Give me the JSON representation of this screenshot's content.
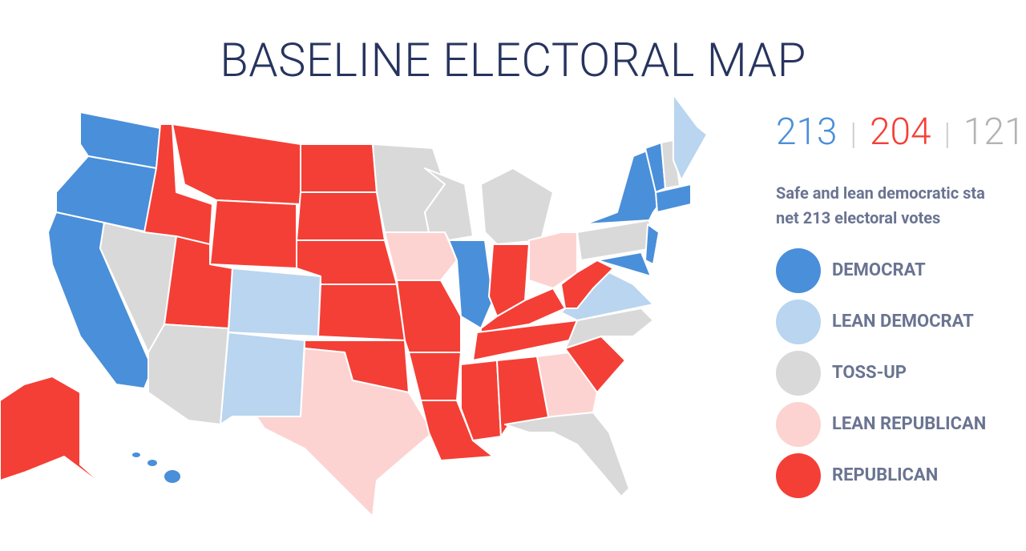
{
  "title": "BASELINE ELECTORAL MAP",
  "tally": [
    {
      "value": 213,
      "color": "#4a8fd9"
    },
    {
      "value": 204,
      "color": "#f43f36"
    },
    {
      "value": 121,
      "color": "#b3b3b3"
    }
  ],
  "description": [
    "Safe and lean democratic sta",
    "net 213 electoral votes"
  ],
  "legend": [
    {
      "label": "DEMOCRAT",
      "color": "#4a8fd9"
    },
    {
      "label": "LEAN DEMOCRAT",
      "color": "#b9d5ef"
    },
    {
      "label": "TOSS-UP",
      "color": "#d9d9d9"
    },
    {
      "label": "LEAN REPUBLICAN",
      "color": "#fcd3d1"
    },
    {
      "label": "REPUBLICAN",
      "color": "#f43f36"
    }
  ]
}
